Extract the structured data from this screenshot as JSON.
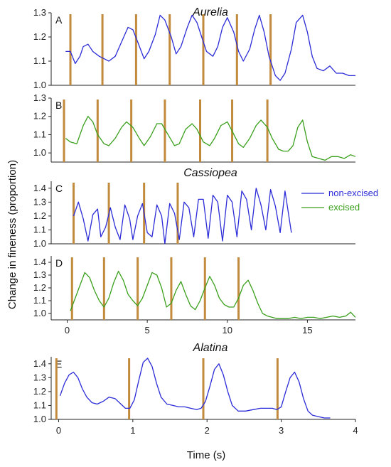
{
  "figure": {
    "ylabel": "Change in fineness (proportion)",
    "xlabel": "Time (s)",
    "legend": [
      {
        "label": "non-excised",
        "color": "#2b2bd8"
      },
      {
        "label": "excised",
        "color": "#3aa01c"
      }
    ],
    "colors": {
      "non_excised": "#2b2bd8",
      "excised": "#3aa01c",
      "marker": "#c28a3c",
      "axis": "#222222"
    }
  },
  "chart_data": [
    {
      "panel": "A",
      "group_title": "Aurelia",
      "type": "line",
      "series_color": "non_excised",
      "xlim": [
        -1,
        18
      ],
      "ylim": [
        1.0,
        1.3
      ],
      "yticks": [
        1.0,
        1.1,
        1.2,
        1.3
      ],
      "x": [
        -0.1,
        0.2,
        0.5,
        0.8,
        1.0,
        1.3,
        1.6,
        2.0,
        2.3,
        2.6,
        3.0,
        3.4,
        3.8,
        4.1,
        4.4,
        4.8,
        5.1,
        5.5,
        5.8,
        6.1,
        6.5,
        6.8,
        7.1,
        7.5,
        7.8,
        8.1,
        8.4,
        8.7,
        9.1,
        9.4,
        9.7,
        10.0,
        10.4,
        10.7,
        11.0,
        11.4,
        11.7,
        12.0,
        12.3,
        12.6,
        13.0,
        13.3,
        13.6,
        14.0,
        14.3,
        14.7,
        15.0,
        15.3,
        15.6,
        16.0,
        16.4,
        16.8,
        17.2,
        17.6,
        18.0
      ],
      "y": [
        1.14,
        1.14,
        1.09,
        1.12,
        1.16,
        1.17,
        1.14,
        1.12,
        1.11,
        1.1,
        1.12,
        1.18,
        1.24,
        1.23,
        1.18,
        1.11,
        1.14,
        1.21,
        1.29,
        1.27,
        1.2,
        1.13,
        1.16,
        1.24,
        1.29,
        1.26,
        1.2,
        1.14,
        1.12,
        1.16,
        1.24,
        1.28,
        1.22,
        1.14,
        1.1,
        1.15,
        1.23,
        1.29,
        1.22,
        1.12,
        1.04,
        1.02,
        1.05,
        1.15,
        1.26,
        1.29,
        1.22,
        1.12,
        1.07,
        1.06,
        1.08,
        1.05,
        1.05,
        1.04,
        1.04
      ],
      "markers_x": [
        0.2,
        2.2,
        4.3,
        6.4,
        8.5,
        10.6,
        12.7
      ]
    },
    {
      "panel": "B",
      "group_title": "",
      "type": "line",
      "series_color": "excised",
      "xlim": [
        -1,
        18
      ],
      "ylim": [
        0.95,
        1.3
      ],
      "yticks": [
        1.0,
        1.1,
        1.2,
        1.3
      ],
      "x": [
        -0.1,
        0.2,
        0.6,
        1.0,
        1.3,
        1.6,
        1.9,
        2.3,
        2.6,
        3.0,
        3.4,
        3.7,
        4.1,
        4.5,
        4.8,
        5.2,
        5.6,
        5.9,
        6.3,
        6.7,
        7.0,
        7.4,
        7.8,
        8.1,
        8.5,
        8.9,
        9.2,
        9.6,
        10.0,
        10.3,
        10.7,
        11.0,
        11.4,
        11.8,
        12.1,
        12.5,
        12.8,
        13.2,
        13.5,
        13.8,
        14.1,
        14.4,
        14.7,
        15.0,
        15.3,
        15.7,
        16.1,
        16.5,
        16.9,
        17.3,
        17.7,
        18.0
      ],
      "y": [
        1.08,
        1.06,
        1.05,
        1.15,
        1.2,
        1.17,
        1.1,
        1.05,
        1.04,
        1.08,
        1.14,
        1.17,
        1.14,
        1.08,
        1.04,
        1.09,
        1.16,
        1.16,
        1.1,
        1.04,
        1.05,
        1.13,
        1.16,
        1.13,
        1.06,
        1.04,
        1.08,
        1.15,
        1.17,
        1.12,
        1.05,
        1.03,
        1.08,
        1.15,
        1.18,
        1.14,
        1.08,
        1.02,
        1.01,
        1.01,
        1.04,
        1.14,
        1.18,
        1.06,
        0.98,
        0.97,
        0.96,
        0.98,
        0.98,
        0.97,
        0.99,
        0.98
      ],
      "markers_x": [
        -0.2,
        1.9,
        4.0,
        6.1,
        8.3,
        10.3,
        12.5
      ]
    },
    {
      "panel": "C",
      "group_title": "Cassiopea",
      "type": "line",
      "series_color": "non_excised",
      "xlim": [
        -1,
        18
      ],
      "ylim": [
        1.0,
        1.45
      ],
      "yticks": [
        1.0,
        1.1,
        1.2,
        1.3,
        1.4
      ],
      "x": [
        0.4,
        0.7,
        1.0,
        1.3,
        1.6,
        1.9,
        2.1,
        2.4,
        2.7,
        3.0,
        3.3,
        3.6,
        3.9,
        4.1,
        4.4,
        4.7,
        5.0,
        5.3,
        5.6,
        5.9,
        6.1,
        6.4,
        6.7,
        7.0,
        7.3,
        7.6,
        7.9,
        8.2,
        8.5,
        8.8,
        9.1,
        9.4,
        9.7,
        10.0,
        10.3,
        10.6,
        10.9,
        11.2,
        11.5,
        11.8,
        12.1,
        12.4,
        12.7,
        13.0,
        13.3,
        13.6,
        14.0
      ],
      "y": [
        1.2,
        1.3,
        1.18,
        1.02,
        1.21,
        1.25,
        1.05,
        1.12,
        1.26,
        1.12,
        1.03,
        1.28,
        1.18,
        1.03,
        1.2,
        1.29,
        1.08,
        1.05,
        1.28,
        1.2,
        1.0,
        1.29,
        1.22,
        1.03,
        1.3,
        1.26,
        1.05,
        1.32,
        1.32,
        1.04,
        1.35,
        1.3,
        1.02,
        1.35,
        1.3,
        1.05,
        1.38,
        1.32,
        1.1,
        1.4,
        1.28,
        1.1,
        1.39,
        1.27,
        1.08,
        1.38,
        1.08
      ],
      "markers_x": [
        0.4,
        2.6,
        4.8,
        6.9
      ]
    },
    {
      "panel": "D",
      "group_title": "",
      "type": "line",
      "series_color": "excised",
      "xlim": [
        -1,
        18
      ],
      "ylim": [
        0.95,
        1.45
      ],
      "yticks": [
        1.0,
        1.1,
        1.2,
        1.3,
        1.4
      ],
      "x": [
        0.2,
        0.5,
        0.8,
        1.1,
        1.4,
        1.7,
        2.0,
        2.3,
        2.6,
        2.9,
        3.2,
        3.5,
        3.8,
        4.1,
        4.4,
        4.7,
        5.0,
        5.3,
        5.6,
        5.9,
        6.2,
        6.5,
        6.8,
        7.1,
        7.4,
        7.7,
        8.0,
        8.3,
        8.6,
        8.9,
        9.2,
        9.5,
        9.8,
        10.1,
        10.4,
        10.7,
        11.0,
        11.3,
        11.6,
        11.9,
        12.2,
        12.5,
        12.8,
        13.1,
        13.4,
        13.8,
        14.2,
        14.6,
        15.0,
        15.4,
        15.8,
        16.2,
        16.6,
        17.0,
        17.4,
        17.7,
        18.0
      ],
      "y": [
        1.02,
        1.12,
        1.22,
        1.32,
        1.28,
        1.18,
        1.1,
        1.05,
        1.12,
        1.24,
        1.33,
        1.26,
        1.15,
        1.1,
        1.06,
        1.12,
        1.22,
        1.32,
        1.3,
        1.2,
        1.05,
        1.08,
        1.18,
        1.25,
        1.15,
        1.06,
        1.03,
        1.1,
        1.2,
        1.29,
        1.22,
        1.12,
        1.07,
        1.05,
        1.05,
        1.12,
        1.22,
        1.26,
        1.18,
        1.08,
        1.0,
        0.98,
        0.97,
        0.96,
        0.96,
        0.96,
        0.97,
        0.96,
        0.97,
        0.97,
        0.96,
        0.97,
        0.98,
        0.97,
        0.98,
        1.01,
        0.97
      ],
      "markers_x": [
        0.3,
        2.3,
        4.4,
        6.5,
        8.6,
        10.7
      ]
    },
    {
      "panel": "E",
      "group_title": "Alatina",
      "type": "line",
      "series_color": "non_excised",
      "xlim": [
        -0.1,
        4
      ],
      "ylim": [
        1.0,
        1.45
      ],
      "yticks": [
        1.0,
        1.1,
        1.2,
        1.3,
        1.4
      ],
      "xticks": [
        0,
        1,
        2,
        3,
        4
      ],
      "x": [
        0.02,
        0.08,
        0.14,
        0.2,
        0.26,
        0.32,
        0.38,
        0.45,
        0.52,
        0.6,
        0.68,
        0.76,
        0.84,
        0.9,
        0.96,
        1.02,
        1.08,
        1.14,
        1.2,
        1.26,
        1.32,
        1.38,
        1.46,
        1.54,
        1.62,
        1.7,
        1.78,
        1.86,
        1.92,
        1.98,
        2.04,
        2.1,
        2.16,
        2.22,
        2.28,
        2.34,
        2.42,
        2.52,
        2.62,
        2.72,
        2.8,
        2.88,
        2.94,
        3.0,
        3.06,
        3.12,
        3.18,
        3.24,
        3.3,
        3.36,
        3.42,
        3.5,
        3.58,
        3.66
      ],
      "y": [
        1.17,
        1.26,
        1.32,
        1.34,
        1.3,
        1.22,
        1.16,
        1.12,
        1.11,
        1.13,
        1.16,
        1.15,
        1.11,
        1.08,
        1.08,
        1.14,
        1.28,
        1.41,
        1.44,
        1.38,
        1.26,
        1.16,
        1.11,
        1.1,
        1.09,
        1.09,
        1.08,
        1.07,
        1.08,
        1.13,
        1.24,
        1.36,
        1.4,
        1.32,
        1.2,
        1.1,
        1.06,
        1.06,
        1.07,
        1.08,
        1.08,
        1.08,
        1.07,
        1.09,
        1.2,
        1.3,
        1.34,
        1.27,
        1.15,
        1.06,
        1.03,
        1.02,
        1.01,
        1.01
      ],
      "markers_x": [
        -0.03,
        0.95,
        1.95,
        2.95
      ]
    }
  ],
  "shared_xaxis_top": {
    "xticks": [
      0,
      5,
      10,
      15
    ]
  }
}
